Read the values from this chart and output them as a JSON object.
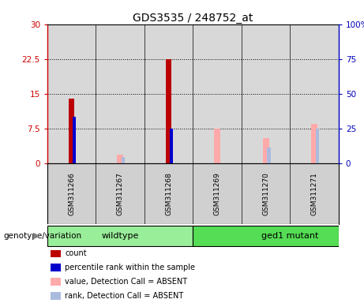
{
  "title": "GDS3535 / 248752_at",
  "samples": [
    "GSM311266",
    "GSM311267",
    "GSM311268",
    "GSM311269",
    "GSM311270",
    "GSM311271"
  ],
  "count_values": [
    14.0,
    0,
    22.5,
    0,
    0,
    0
  ],
  "percentile_values": [
    10.0,
    0,
    7.5,
    0,
    0,
    0
  ],
  "absent_value_values": [
    0,
    2.0,
    0,
    7.5,
    5.5,
    8.5
  ],
  "absent_rank_values": [
    0,
    1.5,
    0,
    0,
    3.5,
    7.5
  ],
  "ylim_left": [
    0,
    30
  ],
  "ylim_right": [
    0,
    100
  ],
  "yticks_left": [
    0,
    7.5,
    15,
    22.5,
    30
  ],
  "yticks_right": [
    0,
    25,
    50,
    75,
    100
  ],
  "ytick_labels_left": [
    "0",
    "7.5",
    "15",
    "22.5",
    "30"
  ],
  "ytick_labels_right": [
    "0",
    "25",
    "50",
    "75",
    "100%"
  ],
  "left_color": "#CC0000",
  "right_color": "#0000BB",
  "count_color": "#BB0000",
  "percentile_color": "#0000CC",
  "absent_value_color": "#FFAAAA",
  "absent_rank_color": "#AABBDD",
  "bg_color": "#D8D8D8",
  "sample_box_color": "#D0D0D0",
  "group_label": "genotype/variation",
  "wildtype_color": "#99EE99",
  "mutant_color": "#55DD55",
  "groups": [
    {
      "name": "wildtype",
      "start": 0,
      "end": 3
    },
    {
      "name": "ged1 mutant",
      "start": 3,
      "end": 6
    }
  ],
  "legend_items": [
    {
      "color": "#BB0000",
      "label": "count"
    },
    {
      "color": "#0000CC",
      "label": "percentile rank within the sample"
    },
    {
      "color": "#FFAAAA",
      "label": "value, Detection Call = ABSENT"
    },
    {
      "color": "#AABBDD",
      "label": "rank, Detection Call = ABSENT"
    }
  ],
  "vline_color": "black",
  "grid_color": "black"
}
